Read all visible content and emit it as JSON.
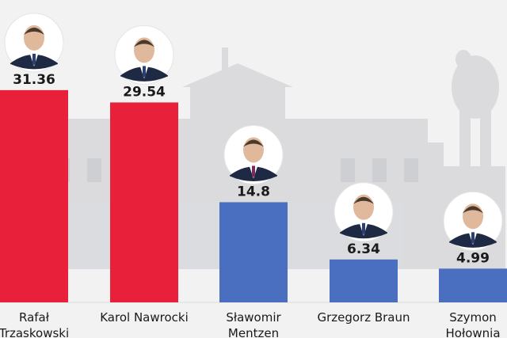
{
  "chart_data": {
    "type": "bar",
    "categories": [
      [
        "Rafał",
        "Trzaskowski"
      ],
      [
        "Karol Nawrocki"
      ],
      [
        "Sławomir",
        "Mentzen"
      ],
      [
        "Grzegorz Braun"
      ],
      [
        "Szymon",
        "Hołownia"
      ]
    ],
    "values": [
      31.36,
      29.54,
      14.8,
      6.34,
      4.99
    ],
    "value_labels": [
      "31.36",
      "29.54",
      "14.8",
      "6.34",
      "4.99"
    ],
    "colors": [
      "#e8203a",
      "#e8203a",
      "#4a6ec0",
      "#4a6ec0",
      "#4a6ec0"
    ],
    "avatar_icons": [
      "candidate-portrait",
      "candidate-portrait",
      "candidate-portrait",
      "candidate-portrait",
      "candidate-portrait"
    ],
    "grid": false,
    "legend": "none"
  },
  "colors": {
    "background": "#f2f2f3",
    "scene": "#c9cacd",
    "highlight": "#e8203a",
    "other": "#4a6ec0",
    "baseline": "#dcdcdc"
  }
}
